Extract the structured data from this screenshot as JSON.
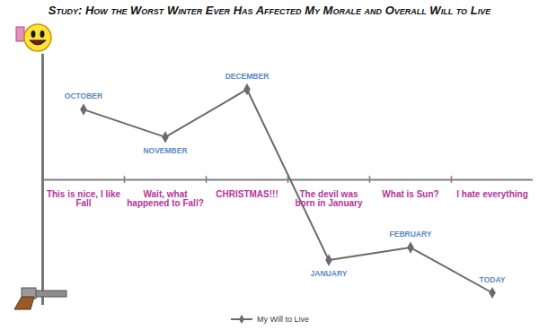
{
  "chart_data": {
    "type": "line",
    "title": "Study: How the Worst Winter Ever Has Affected My Morale and Overall Will to Live",
    "categories": [
      "This is nice, I like Fall",
      "Wait, what happened to Fall?",
      "CHRISTMAS!!!",
      "The devil was born in January",
      "What is Sun?",
      "I hate everything"
    ],
    "point_labels": [
      "OCTOBER",
      "NOVEMBER",
      "DECEMBER",
      "JANUARY",
      "FEBRUARY",
      "TODAY"
    ],
    "series": [
      {
        "name": "My Will to Live",
        "color": "#6b6b6b",
        "marker": "diamond",
        "values": [
          2.8,
          1.7,
          3.6,
          -3.2,
          -2.7,
          -4.5
        ]
      }
    ],
    "ylim": [
      -5,
      5
    ],
    "yticks": [],
    "grid": false,
    "tick_labels": "x",
    "legend": "bottom"
  }
}
